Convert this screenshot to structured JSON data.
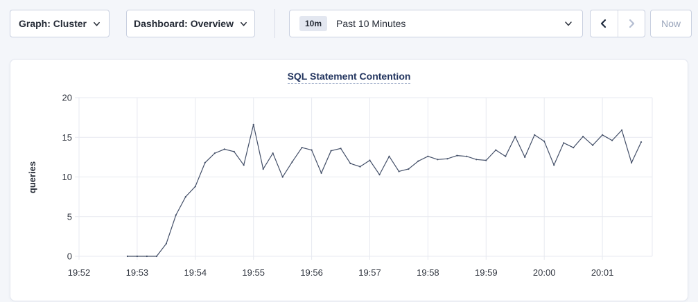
{
  "toolbar": {
    "graph_selector": {
      "label": "Graph: Cluster"
    },
    "dashboard_selector": {
      "label": "Dashboard: Overview"
    },
    "time_selector": {
      "badge": "10m",
      "label": "Past 10 Minutes"
    },
    "now_button": {
      "label": "Now"
    }
  },
  "chart_data": {
    "type": "line",
    "title": "SQL Statement Contention",
    "ylabel": "queries",
    "ylim": [
      0,
      20
    ],
    "yticks": [
      0,
      5,
      10,
      15,
      20
    ],
    "x_minute_labels": [
      "19:52",
      "19:53",
      "19:54",
      "19:55",
      "19:56",
      "19:57",
      "19:58",
      "19:59",
      "20:00",
      "20:01"
    ],
    "grid": true,
    "grid_color": "#e7e9f0",
    "series": [
      {
        "name": "SQL Statement Contention",
        "color": "#434f68",
        "start_offset_seconds": 50,
        "step_seconds": 10,
        "values": [
          0,
          0,
          0,
          0,
          1.6,
          5.2,
          7.5,
          8.8,
          11.8,
          13.0,
          13.5,
          13.2,
          11.5,
          16.6,
          11.0,
          13.0,
          10.0,
          11.9,
          13.7,
          13.4,
          10.5,
          13.3,
          13.6,
          11.7,
          11.3,
          12.1,
          10.3,
          12.6,
          10.7,
          11.0,
          12.0,
          12.6,
          12.2,
          12.3,
          12.7,
          12.6,
          12.2,
          12.1,
          13.4,
          12.6,
          15.1,
          12.5,
          15.3,
          14.5,
          11.5,
          14.3,
          13.7,
          15.1,
          14.0,
          15.3,
          14.6,
          15.9,
          11.8,
          14.4
        ]
      }
    ]
  },
  "colors": {
    "accent_text": "#242a35",
    "disabled_text": "#9aa5bb",
    "title_text": "#23355f",
    "button_border": "#c9d0e0"
  }
}
